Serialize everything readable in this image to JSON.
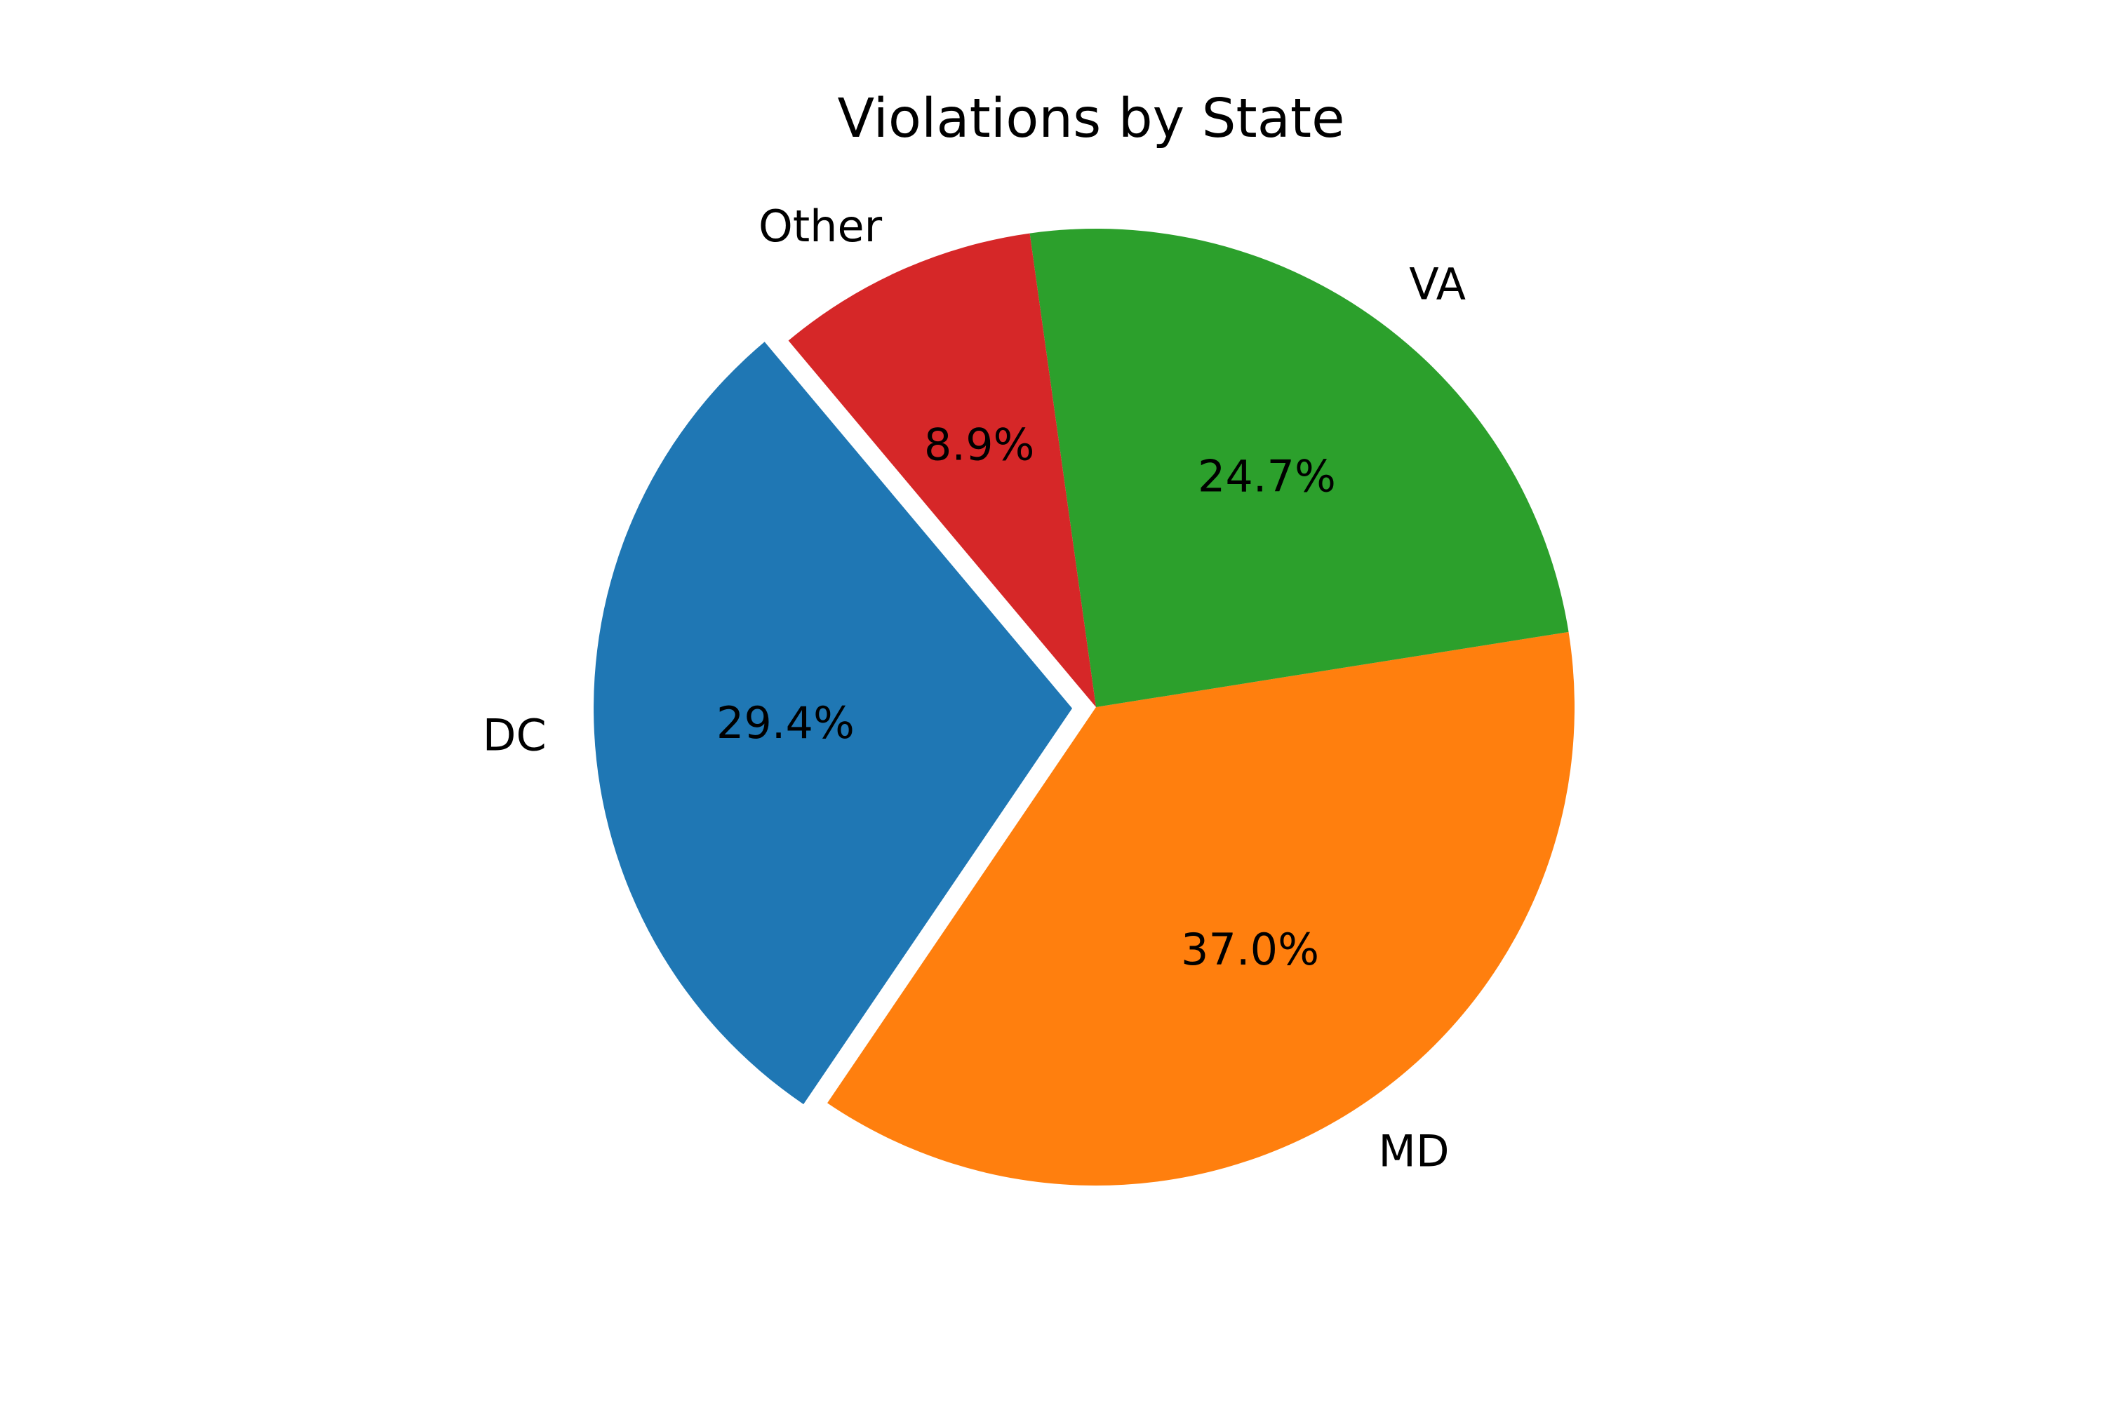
{
  "chart_data": {
    "type": "pie",
    "title": "Violations by State",
    "start_angle_deg": 130,
    "counterclockwise": true,
    "slices": [
      {
        "label": "DC",
        "value": 29.4,
        "pct_label": "29.4%",
        "color": "#1f77b4",
        "exploded": true
      },
      {
        "label": "MD",
        "value": 37.0,
        "pct_label": "37.0%",
        "color": "#ff7f0e",
        "exploded": false
      },
      {
        "label": "VA",
        "value": 24.7,
        "pct_label": "24.7%",
        "color": "#2ca02c",
        "exploded": false
      },
      {
        "label": "Other",
        "value": 8.9,
        "pct_label": "8.9%",
        "color": "#d62728",
        "exploded": false
      }
    ]
  }
}
